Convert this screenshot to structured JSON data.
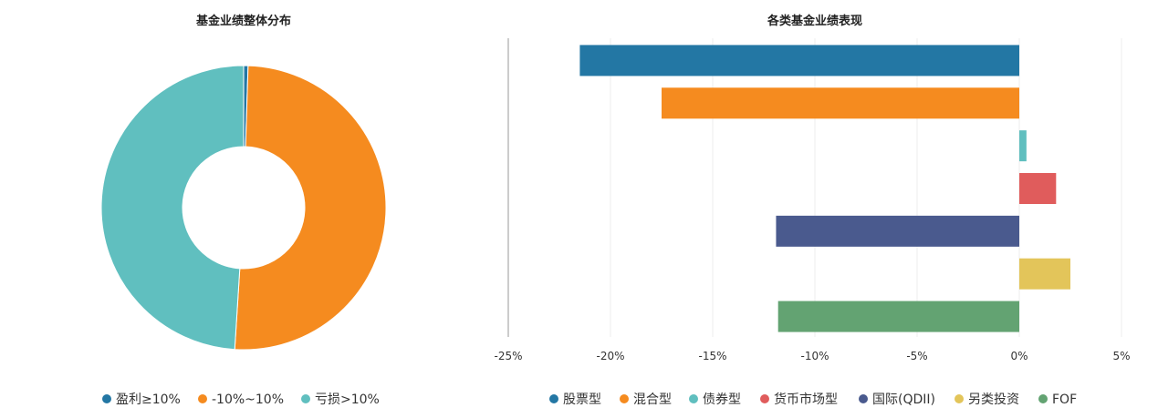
{
  "chart_data": [
    {
      "type": "pie",
      "variant": "donut",
      "title": "基金业绩整体分布",
      "legend_position": "bottom",
      "slices": [
        {
          "name": "盈利≥10%",
          "value": 0.5,
          "color": "#2377a4"
        },
        {
          "name": "-10%~10%",
          "value": 50.5,
          "color": "#f58b1f"
        },
        {
          "name": "亏损>10%",
          "value": 49.0,
          "color": "#60bfbf"
        }
      ]
    },
    {
      "type": "bar",
      "orientation": "horizontal",
      "title": "各类基金业绩表现",
      "legend_position": "bottom",
      "xlim": [
        -25,
        5
      ],
      "xticks": [
        -25,
        -20,
        -15,
        -10,
        -5,
        0,
        5
      ],
      "xtick_labels": [
        "-25%",
        "-20%",
        "-15%",
        "-10%",
        "-5%",
        "0%",
        "5%"
      ],
      "grid": true,
      "series": [
        {
          "name": "股票型",
          "value": -21.5,
          "color": "#2377a4"
        },
        {
          "name": "混合型",
          "value": -17.5,
          "color": "#f58b1f"
        },
        {
          "name": "债券型",
          "value": 0.35,
          "color": "#60bfbf"
        },
        {
          "name": "货币市场型",
          "value": 1.8,
          "color": "#e05c5c"
        },
        {
          "name": "国际(QDII)",
          "value": -11.9,
          "color": "#4a5a8e"
        },
        {
          "name": "另类投资",
          "value": 2.5,
          "color": "#e3c55a"
        },
        {
          "name": "FOF",
          "value": -11.8,
          "color": "#63a372"
        }
      ]
    }
  ]
}
